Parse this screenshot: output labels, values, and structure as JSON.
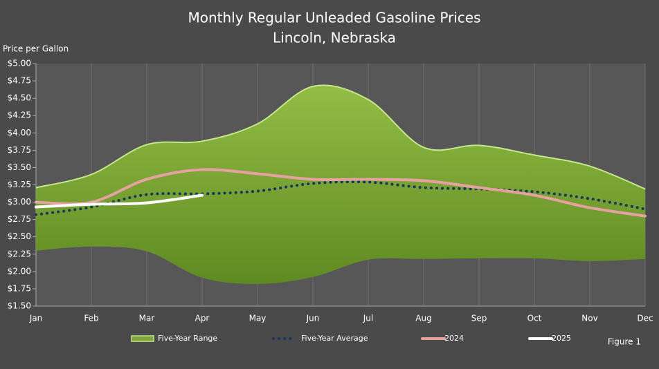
{
  "chart_data": {
    "type": "line",
    "title": "Monthly Regular Unleaded Gasoline Prices",
    "subtitle": "Lincoln, Nebraska",
    "y_label": "Price per Gallon",
    "annotation": "Figure 1",
    "categories": [
      "Jan",
      "Feb",
      "Mar",
      "Apr",
      "May",
      "Jun",
      "Jul",
      "Aug",
      "Sep",
      "Oct",
      "Nov",
      "Dec"
    ],
    "ylim": [
      1.5,
      5.0
    ],
    "yticks": [
      {
        "value": 1.5,
        "label": "$1.50"
      },
      {
        "value": 1.75,
        "label": "$1.75"
      },
      {
        "value": 2.0,
        "label": "$2.00"
      },
      {
        "value": 2.25,
        "label": "$2.25"
      },
      {
        "value": 2.5,
        "label": "$2.50"
      },
      {
        "value": 2.75,
        "label": "$2.75"
      },
      {
        "value": 3.0,
        "label": "$3.00"
      },
      {
        "value": 3.25,
        "label": "$3.25"
      },
      {
        "value": 3.5,
        "label": "$3.50"
      },
      {
        "value": 3.75,
        "label": "$3.75"
      },
      {
        "value": 4.0,
        "label": "$4.00"
      },
      {
        "value": 4.25,
        "label": "$4.25"
      },
      {
        "value": 4.5,
        "label": "$4.50"
      },
      {
        "value": 4.75,
        "label": "$4.75"
      },
      {
        "value": 5.0,
        "label": "$5.00"
      }
    ],
    "range": {
      "name": "Five-Year Range",
      "color": "#7fa33a",
      "high": [
        3.21,
        3.4,
        3.83,
        3.88,
        4.13,
        4.67,
        4.48,
        3.79,
        3.82,
        3.68,
        3.52,
        3.19
      ],
      "low": [
        2.3,
        2.36,
        2.29,
        1.91,
        1.82,
        1.92,
        2.17,
        2.18,
        2.19,
        2.19,
        2.15,
        2.18
      ]
    },
    "series": [
      {
        "name": "Five-Year Average",
        "color": "#17365d",
        "style": "dotted",
        "values": [
          2.82,
          2.93,
          3.11,
          3.12,
          3.16,
          3.27,
          3.29,
          3.21,
          3.19,
          3.15,
          3.05,
          2.9
        ]
      },
      {
        "name": "2024",
        "color": "#e6a1a1",
        "style": "solid",
        "values": [
          3.0,
          3.0,
          3.33,
          3.47,
          3.41,
          3.33,
          3.33,
          3.31,
          3.21,
          3.1,
          2.92,
          2.8
        ]
      },
      {
        "name": "2025",
        "color": "#ffffff",
        "style": "solid",
        "values": [
          2.93,
          2.97,
          2.99,
          3.1,
          null,
          null,
          null,
          null,
          null,
          null,
          null,
          null
        ]
      }
    ]
  }
}
